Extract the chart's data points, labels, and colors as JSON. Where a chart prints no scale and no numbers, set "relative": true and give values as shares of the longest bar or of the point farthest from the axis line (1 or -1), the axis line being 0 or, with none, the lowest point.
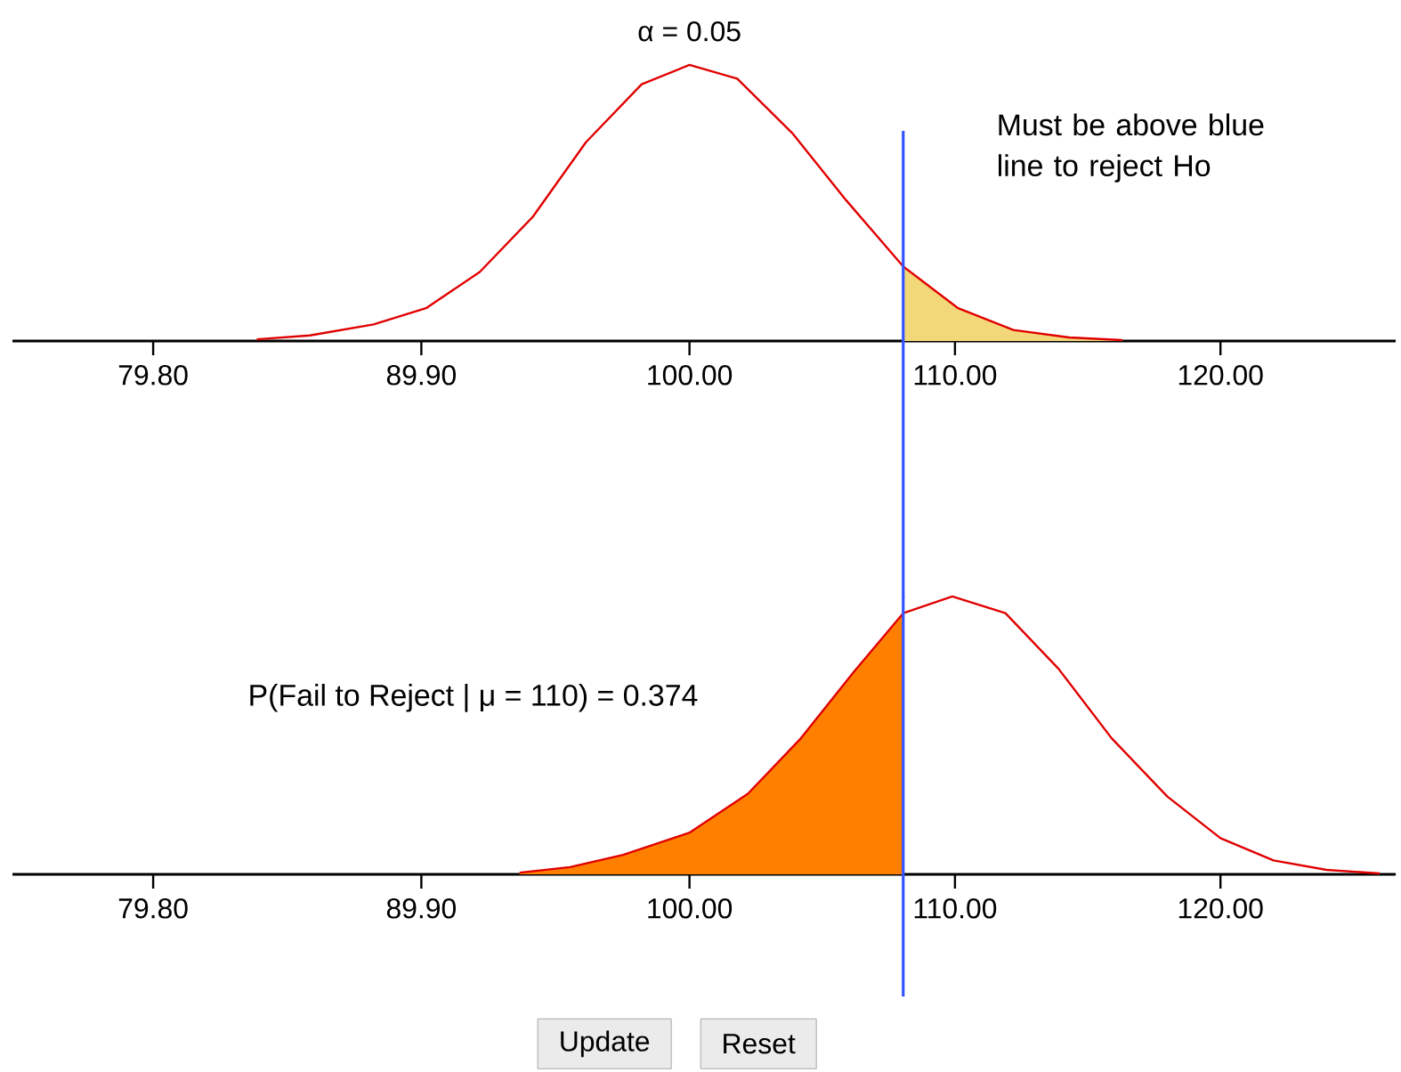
{
  "chart_data": [
    {
      "type": "line",
      "title": "α = 0.05",
      "relative": true,
      "xlim": [
        74.5,
        126.6
      ],
      "xticks": [
        {
          "value": 79.8,
          "label": "79.80"
        },
        {
          "value": 89.9,
          "label": "89.90"
        },
        {
          "value": 100,
          "label": "100.00"
        },
        {
          "value": 110,
          "label": "110.00"
        },
        {
          "value": 120,
          "label": "120.00"
        }
      ],
      "series": [
        {
          "color": "#e00000",
          "x": [
            83.7,
            85.7,
            88.1,
            90.1,
            92.1,
            94.1,
            96.1,
            98.2,
            100,
            101.8,
            103.9,
            105.9,
            108.05,
            110.1,
            112.2,
            114.3,
            116.3
          ],
          "values": [
            0.006,
            0.02,
            0.06,
            0.12,
            0.25,
            0.45,
            0.72,
            0.93,
            1.0,
            0.95,
            0.75,
            0.51,
            0.27,
            0.12,
            0.04,
            0.013,
            0.003
          ]
        },
        {
          "type": "area",
          "color": "#f3d87a",
          "x": [
            108.05,
            110.1,
            112.2,
            114.3,
            116.3
          ],
          "values": [
            0.27,
            0.12,
            0.04,
            0.013,
            0.003
          ]
        }
      ],
      "ref_lines": [
        {
          "axis": "x",
          "value": 108.05,
          "color": "#3355ff"
        }
      ],
      "annotations": [
        "Must be above blue line to reject Ho"
      ]
    },
    {
      "type": "line",
      "relative": true,
      "xlim": [
        74.5,
        126.6
      ],
      "xticks": [
        {
          "value": 79.8,
          "label": "79.80"
        },
        {
          "value": 89.9,
          "label": "89.90"
        },
        {
          "value": 100,
          "label": "100.00"
        },
        {
          "value": 110,
          "label": "110.00"
        },
        {
          "value": 120,
          "label": "120.00"
        }
      ],
      "series": [
        {
          "color": "#e00000",
          "x": [
            93.6,
            95.5,
            97.5,
            100,
            102.2,
            104.2,
            106.2,
            108.05,
            109.9,
            111.9,
            113.9,
            115.9,
            118,
            120,
            122,
            124,
            126
          ],
          "values": [
            0.006,
            0.026,
            0.07,
            0.15,
            0.29,
            0.49,
            0.73,
            0.94,
            1.0,
            0.94,
            0.74,
            0.49,
            0.28,
            0.13,
            0.05,
            0.016,
            0.003
          ]
        },
        {
          "type": "area",
          "color": "#ff8000",
          "x": [
            93.6,
            95.5,
            97.5,
            100,
            102.2,
            104.2,
            106.2,
            108.05
          ],
          "values": [
            0.006,
            0.026,
            0.07,
            0.15,
            0.29,
            0.49,
            0.73,
            0.94
          ]
        }
      ],
      "ref_lines": [
        {
          "axis": "x",
          "value": 108.05,
          "color": "#3355ff"
        }
      ],
      "annotations": [
        "P(Fail to Reject | μ = 110)  = 0.374",
        "Update",
        "Reset"
      ]
    }
  ]
}
